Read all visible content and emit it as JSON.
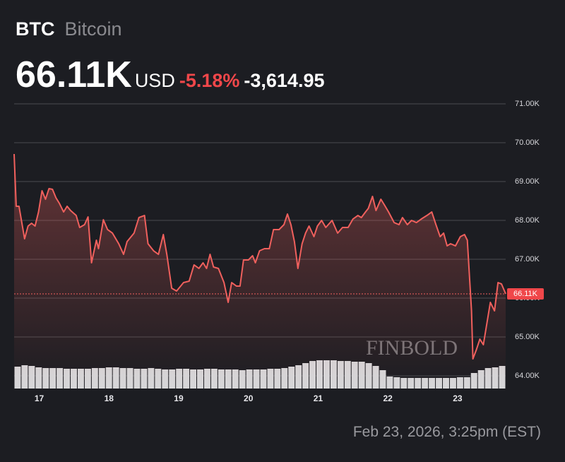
{
  "header": {
    "symbol": "BTC",
    "name": "Bitcoin",
    "price": "66.11K",
    "currency": "USD",
    "change_percent": "-5.18%",
    "change": "-3,614.95"
  },
  "timestamp": "Feb 23, 2026, 3:25pm (EST)",
  "chart_data": {
    "type": "line",
    "color": "#f0605d",
    "grid": true,
    "area": true,
    "x": [
      16.64,
      16.67,
      16.71,
      16.79,
      16.84,
      16.89,
      16.94,
      16.99,
      17.04,
      17.09,
      17.14,
      17.19,
      17.24,
      17.29,
      17.35,
      17.4,
      17.45,
      17.53,
      17.58,
      17.65,
      17.7,
      17.75,
      17.82,
      17.85,
      17.92,
      17.98,
      18.05,
      18.14,
      18.21,
      18.26,
      18.36,
      18.43,
      18.51,
      18.56,
      18.64,
      18.71,
      18.78,
      18.83,
      18.9,
      18.97,
      19.07,
      19.15,
      19.22,
      19.29,
      19.35,
      19.4,
      19.45,
      19.5,
      19.57,
      19.65,
      19.71,
      19.76,
      19.83,
      19.88,
      19.93,
      20.0,
      20.06,
      20.1,
      20.16,
      20.23,
      20.3,
      20.36,
      20.44,
      20.51,
      20.56,
      20.61,
      20.66,
      20.71,
      20.77,
      20.82,
      20.87,
      20.94,
      20.99,
      21.05,
      21.11,
      21.2,
      21.28,
      21.35,
      21.43,
      21.5,
      21.57,
      21.62,
      21.68,
      21.72,
      21.78,
      21.83,
      21.9,
      21.95,
      22.01,
      22.09,
      22.16,
      22.21,
      22.28,
      22.34,
      22.41,
      22.48,
      22.56,
      22.63,
      22.69,
      22.75,
      22.8,
      22.85,
      22.9,
      22.97,
      23.04,
      23.1,
      23.14,
      23.17,
      23.2,
      23.22,
      23.27,
      23.32,
      23.37,
      23.42,
      23.47,
      23.53,
      23.58,
      23.63,
      23.69
    ],
    "values": [
      69709,
      68364,
      68364,
      67527,
      67855,
      67927,
      67855,
      68218,
      68764,
      68545,
      68818,
      68800,
      68582,
      68436,
      68218,
      68364,
      68255,
      68127,
      67818,
      67891,
      68091,
      66909,
      67491,
      67273,
      68018,
      67764,
      67673,
      67400,
      67127,
      67455,
      67673,
      68073,
      68127,
      67400,
      67218,
      67127,
      67636,
      67127,
      66255,
      66182,
      66400,
      66436,
      66855,
      66764,
      66909,
      66764,
      67127,
      66800,
      66764,
      66400,
      65891,
      66400,
      66309,
      66309,
      66982,
      66982,
      67091,
      66909,
      67218,
      67273,
      67273,
      67764,
      67764,
      67891,
      68164,
      67891,
      67455,
      66764,
      67400,
      67673,
      67855,
      67582,
      67855,
      68000,
      67818,
      68000,
      67673,
      67818,
      67818,
      68036,
      68127,
      68073,
      68218,
      68309,
      68618,
      68255,
      68545,
      68400,
      68218,
      67945,
      67891,
      68073,
      67891,
      68000,
      67945,
      68036,
      68127,
      68218,
      67891,
      67582,
      67673,
      67345,
      67400,
      67345,
      67582,
      67636,
      67491,
      66582,
      65673,
      64436,
      64673,
      64945,
      64800,
      65345,
      65891,
      65673,
      66400,
      66364,
      66110
    ],
    "xlim": [
      16.64,
      23.69
    ],
    "xticks": [
      17,
      18,
      19,
      20,
      21,
      22,
      23
    ],
    "ylim": [
      63673,
      71200
    ],
    "yticks": [
      {
        "value": 64000,
        "label": "64.00K"
      },
      {
        "value": 65000,
        "label": "65.00K"
      },
      {
        "value": 66000,
        "label": "66.00K"
      },
      {
        "value": 67000,
        "label": "67.00K"
      },
      {
        "value": 68000,
        "label": "68.00K"
      },
      {
        "value": 69000,
        "label": "69.00K"
      },
      {
        "value": 70000,
        "label": "70.00K"
      },
      {
        "value": 71000,
        "label": "71.00K"
      }
    ],
    "price_marker": {
      "value": 66110,
      "label": "66.11K"
    },
    "watermark": "FINBOLD",
    "volume": {
      "color": "#d6d6d8",
      "values": [
        31,
        33,
        32,
        30,
        29,
        29,
        29,
        28,
        28,
        28,
        28,
        29,
        29,
        30,
        30,
        29,
        29,
        28,
        28,
        29,
        28,
        27,
        27,
        28,
        28,
        27,
        27,
        28,
        28,
        27,
        27,
        27,
        26,
        27,
        27,
        27,
        28,
        28,
        29,
        31,
        33,
        36,
        39,
        40,
        40,
        40,
        39,
        39,
        38,
        38,
        36,
        32,
        26,
        17,
        16,
        15,
        15,
        15,
        15,
        15,
        15,
        15,
        15,
        16,
        16,
        22,
        26,
        29,
        30,
        32
      ]
    }
  }
}
